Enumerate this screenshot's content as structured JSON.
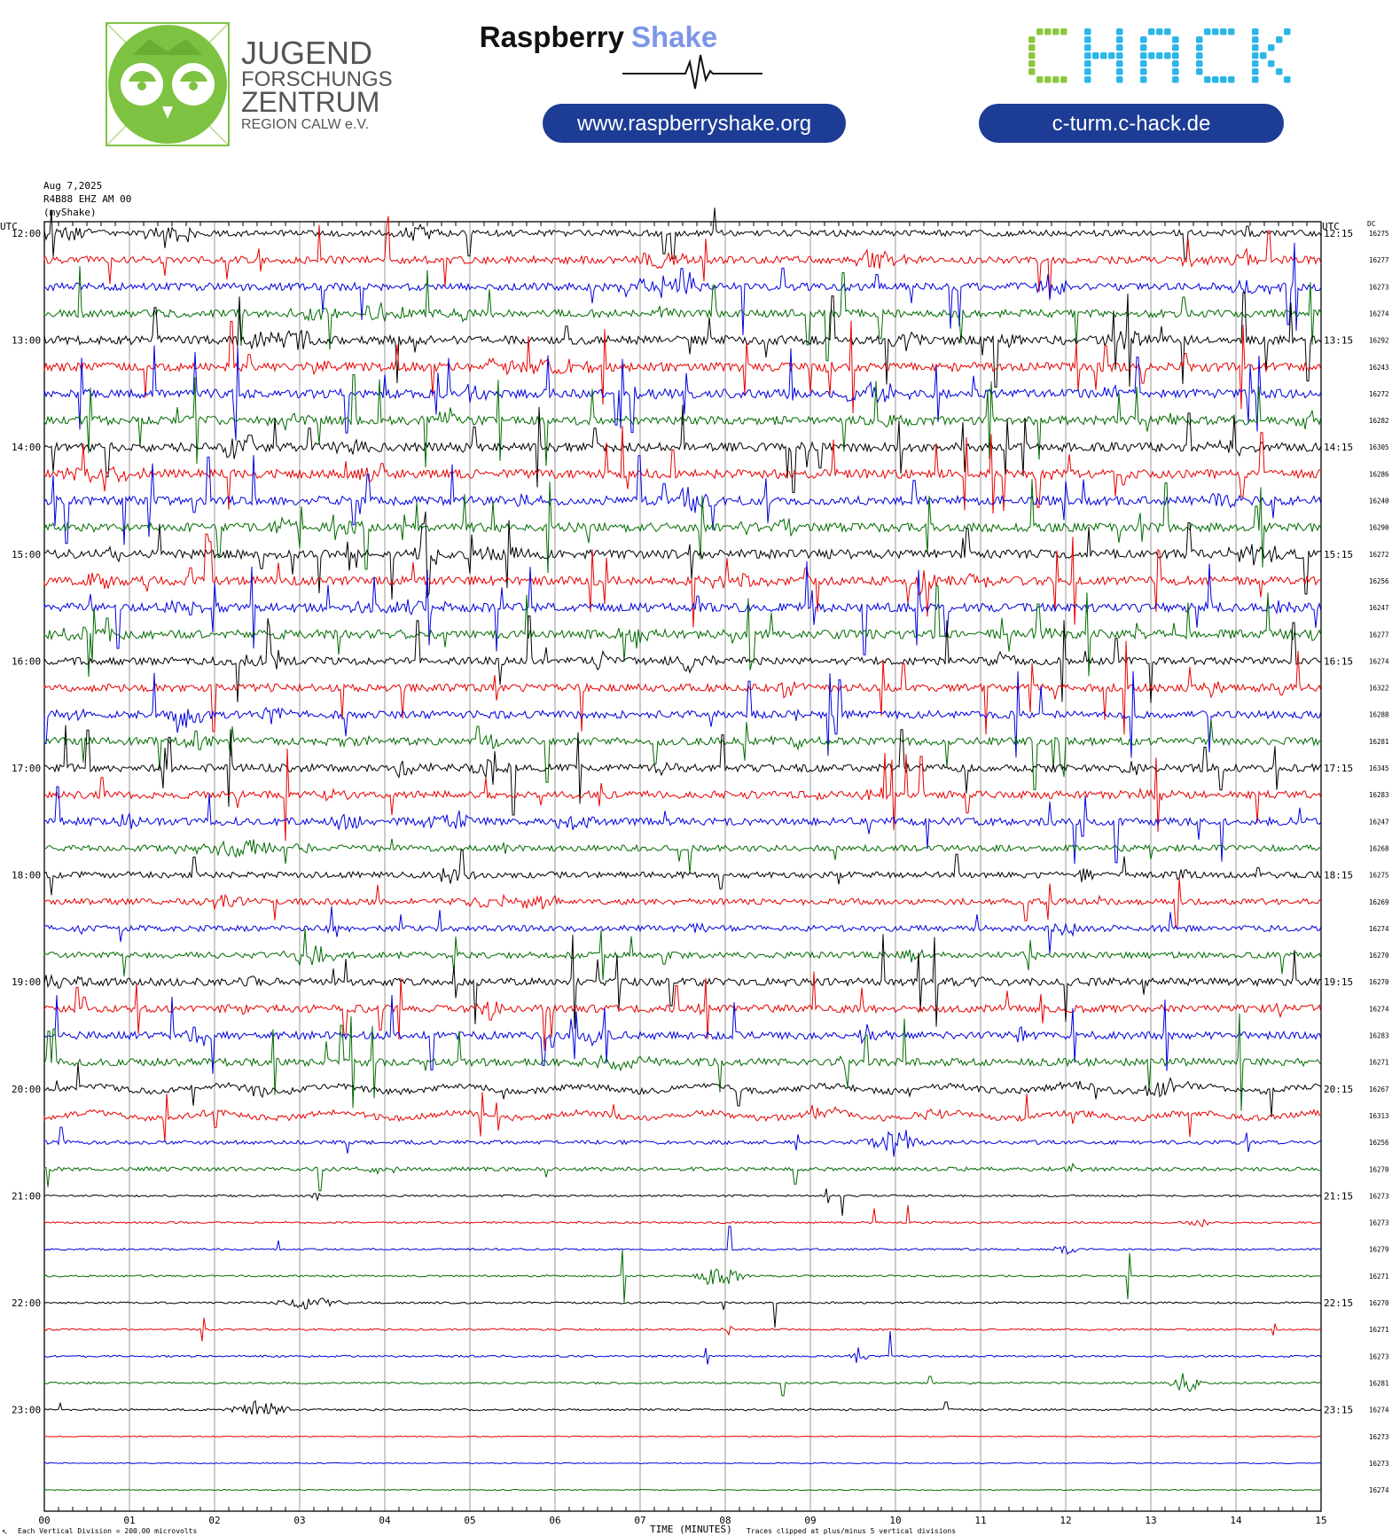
{
  "logos": {
    "jfz": {
      "line1": "JUGEND",
      "line2": "FORSCHUNGS",
      "line3": "ZENTRUM",
      "line4": "REGION CALW e.V.",
      "color": "#7ec242"
    },
    "raspberry": {
      "word1": "Raspberry",
      "word2": "Shake",
      "word2_color": "#7d95e8",
      "url": "www.raspberryshake.org"
    },
    "chack": {
      "text": "CHACK",
      "url": "c-turm.c-hack.de",
      "c_color": "#8dc63f",
      "hack_color": "#2bb6e8"
    },
    "pill_color": "#1d3c95"
  },
  "meta": {
    "date": "Aug 7,2025",
    "station": "R4B88 EHZ AM 00",
    "source": "(myShake)",
    "left_header": "UTC",
    "right_header": "UTC",
    "dc_header": "DC"
  },
  "footer": {
    "left_note": "Each Vertical Division =  200.00 microvolts",
    "xlabel": "TIME (MINUTES)",
    "right_note": "Traces clipped at plus/minus 5 vertical divisions",
    "corner": "↖"
  },
  "chart_data": {
    "type": "line",
    "x_ticks": [
      "00",
      "01",
      "02",
      "03",
      "04",
      "05",
      "06",
      "07",
      "08",
      "09",
      "10",
      "11",
      "12",
      "13",
      "14",
      "15"
    ],
    "xlim": [
      0,
      15
    ],
    "xlabel": "TIME (MINUTES)",
    "trace_colors": [
      "#000000",
      "#e80000",
      "#0000e0",
      "#006b00"
    ],
    "hour_labels_left": [
      "12:00",
      "13:00",
      "14:00",
      "15:00",
      "16:00",
      "17:00",
      "18:00",
      "19:00",
      "20:00",
      "21:00",
      "22:00",
      "23:00"
    ],
    "hour_labels_right": [
      "12:15",
      "13:15",
      "14:15",
      "15:15",
      "16:15",
      "17:15",
      "18:15",
      "19:15",
      "20:15",
      "21:15",
      "22:15",
      "23:15"
    ],
    "dc_offsets": [
      "16275",
      "16277",
      "16273",
      "16274",
      "16292",
      "16243",
      "16272",
      "16282",
      "16305",
      "16286",
      "16240",
      "16290",
      "16272",
      "16256",
      "16247",
      "16277",
      "16274",
      "16322",
      "16288",
      "16281",
      "16345",
      "16283",
      "16247",
      "16268",
      "16275",
      "16269",
      "16274",
      "16270",
      "16270",
      "16274",
      "16283",
      "16271",
      "16267",
      "16313",
      "16256",
      "16270",
      "16273",
      "16273",
      "16279",
      "16271",
      "16270",
      "16271",
      "16273",
      "16281",
      "16274",
      "16273",
      "16273",
      "16274"
    ],
    "activity": [
      3,
      4,
      4,
      4,
      5,
      5,
      5,
      5,
      5,
      5,
      5,
      5,
      5,
      5,
      5,
      5,
      4,
      4,
      4,
      4,
      4,
      4,
      4,
      3,
      3,
      3,
      3,
      3,
      4,
      4,
      4,
      4,
      3,
      3,
      2,
      2,
      1,
      1,
      1,
      1,
      1,
      1,
      1,
      1,
      1,
      0,
      0,
      0
    ],
    "traces": 48,
    "minutes_per_trace": 15
  }
}
